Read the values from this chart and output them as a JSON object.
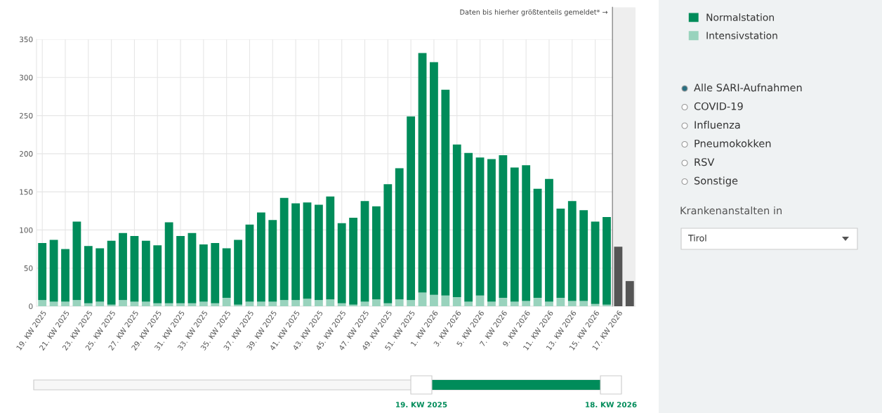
{
  "chart_data": {
    "type": "bar",
    "stacked": true,
    "categories": [
      "19. KW 2025",
      null,
      "21. KW 2025",
      null,
      "23. KW 2025",
      null,
      "25. KW 2025",
      null,
      "27. KW 2025",
      null,
      "29. KW 2025",
      null,
      "31. KW 2025",
      null,
      "33. KW 2025",
      null,
      "35. KW 2025",
      null,
      "37. KW 2025",
      null,
      "39. KW 2025",
      null,
      "41. KW 2025",
      null,
      "43. KW 2025",
      null,
      "45. KW 2025",
      null,
      "47. KW 2025",
      null,
      "49. KW 2025",
      null,
      "51. KW 2025",
      null,
      "1. KW 2026",
      null,
      "3. KW 2026",
      null,
      "5. KW 2026",
      null,
      "7. KW 2026",
      null,
      "9. KW 2026",
      null,
      "11. KW 2026",
      null,
      "13. KW 2026",
      null,
      "15. KW 2026",
      null,
      "17. KW 2026",
      null
    ],
    "series": [
      {
        "name": "Intensivstation",
        "color": "#99d3bd",
        "values": [
          8,
          6,
          6,
          8,
          4,
          6,
          2,
          8,
          6,
          6,
          4,
          4,
          4,
          4,
          6,
          4,
          11,
          2,
          6,
          6,
          6,
          8,
          8,
          10,
          8,
          9,
          4,
          2,
          6,
          9,
          4,
          9,
          8,
          18,
          15,
          14,
          12,
          6,
          14,
          6,
          11,
          6,
          7,
          11,
          6,
          11,
          7,
          7,
          3,
          2,
          null,
          null
        ]
      },
      {
        "name": "Normalstation",
        "color": "#008c5a",
        "colors": [
          "#008c5a",
          "#008c5a",
          "#008c5a",
          "#008c5a",
          "#008c5a",
          "#008c5a",
          "#008c5a",
          "#008c5a",
          "#008c5a",
          "#008c5a",
          "#008c5a",
          "#008c5a",
          "#008c5a",
          "#008c5a",
          "#008c5a",
          "#008c5a",
          "#008c5a",
          "#008c5a",
          "#008c5a",
          "#008c5a",
          "#008c5a",
          "#008c5a",
          "#008c5a",
          "#008c5a",
          "#008c5a",
          "#008c5a",
          "#008c5a",
          "#008c5a",
          "#008c5a",
          "#008c5a",
          "#008c5a",
          "#008c5a",
          "#008c5a",
          "#008c5a",
          "#008c5a",
          "#008c5a",
          "#008c5a",
          "#008c5a",
          "#008c5a",
          "#008c5a",
          "#008c5a",
          "#008c5a",
          "#008c5a",
          "#008c5a",
          "#008c5a",
          "#008c5a",
          "#008c5a",
          "#008c5a",
          "#008c5a",
          "#008c5a",
          "#555555",
          "#555555"
        ],
        "values": [
          75,
          81,
          69,
          103,
          75,
          70,
          84,
          88,
          86,
          80,
          76,
          106,
          88,
          92,
          75,
          79,
          65,
          85,
          101,
          117,
          107,
          134,
          127,
          126,
          125,
          135,
          105,
          114,
          132,
          122,
          156,
          172,
          241,
          314,
          305,
          270,
          200,
          195,
          181,
          187,
          187,
          176,
          178,
          143,
          161,
          117,
          131,
          119,
          108,
          115,
          78,
          33
        ]
      }
    ],
    "ylim": [
      0,
      350
    ],
    "yticks": [
      0,
      50,
      100,
      150,
      200,
      250,
      300,
      350
    ],
    "grid": true,
    "legend": "top right",
    "annotations": [
      "Alle SARI-Aufnahmen",
      "COVID-19",
      "Influenza",
      "Pneumokokken",
      "RSV",
      "Sonstige",
      "Krankenanstalten in",
      "Tirol",
      "19. KW 2025",
      "18. KW 2026",
      "Daten bis hierher größtenteils gemeldet* →"
    ]
  }
}
